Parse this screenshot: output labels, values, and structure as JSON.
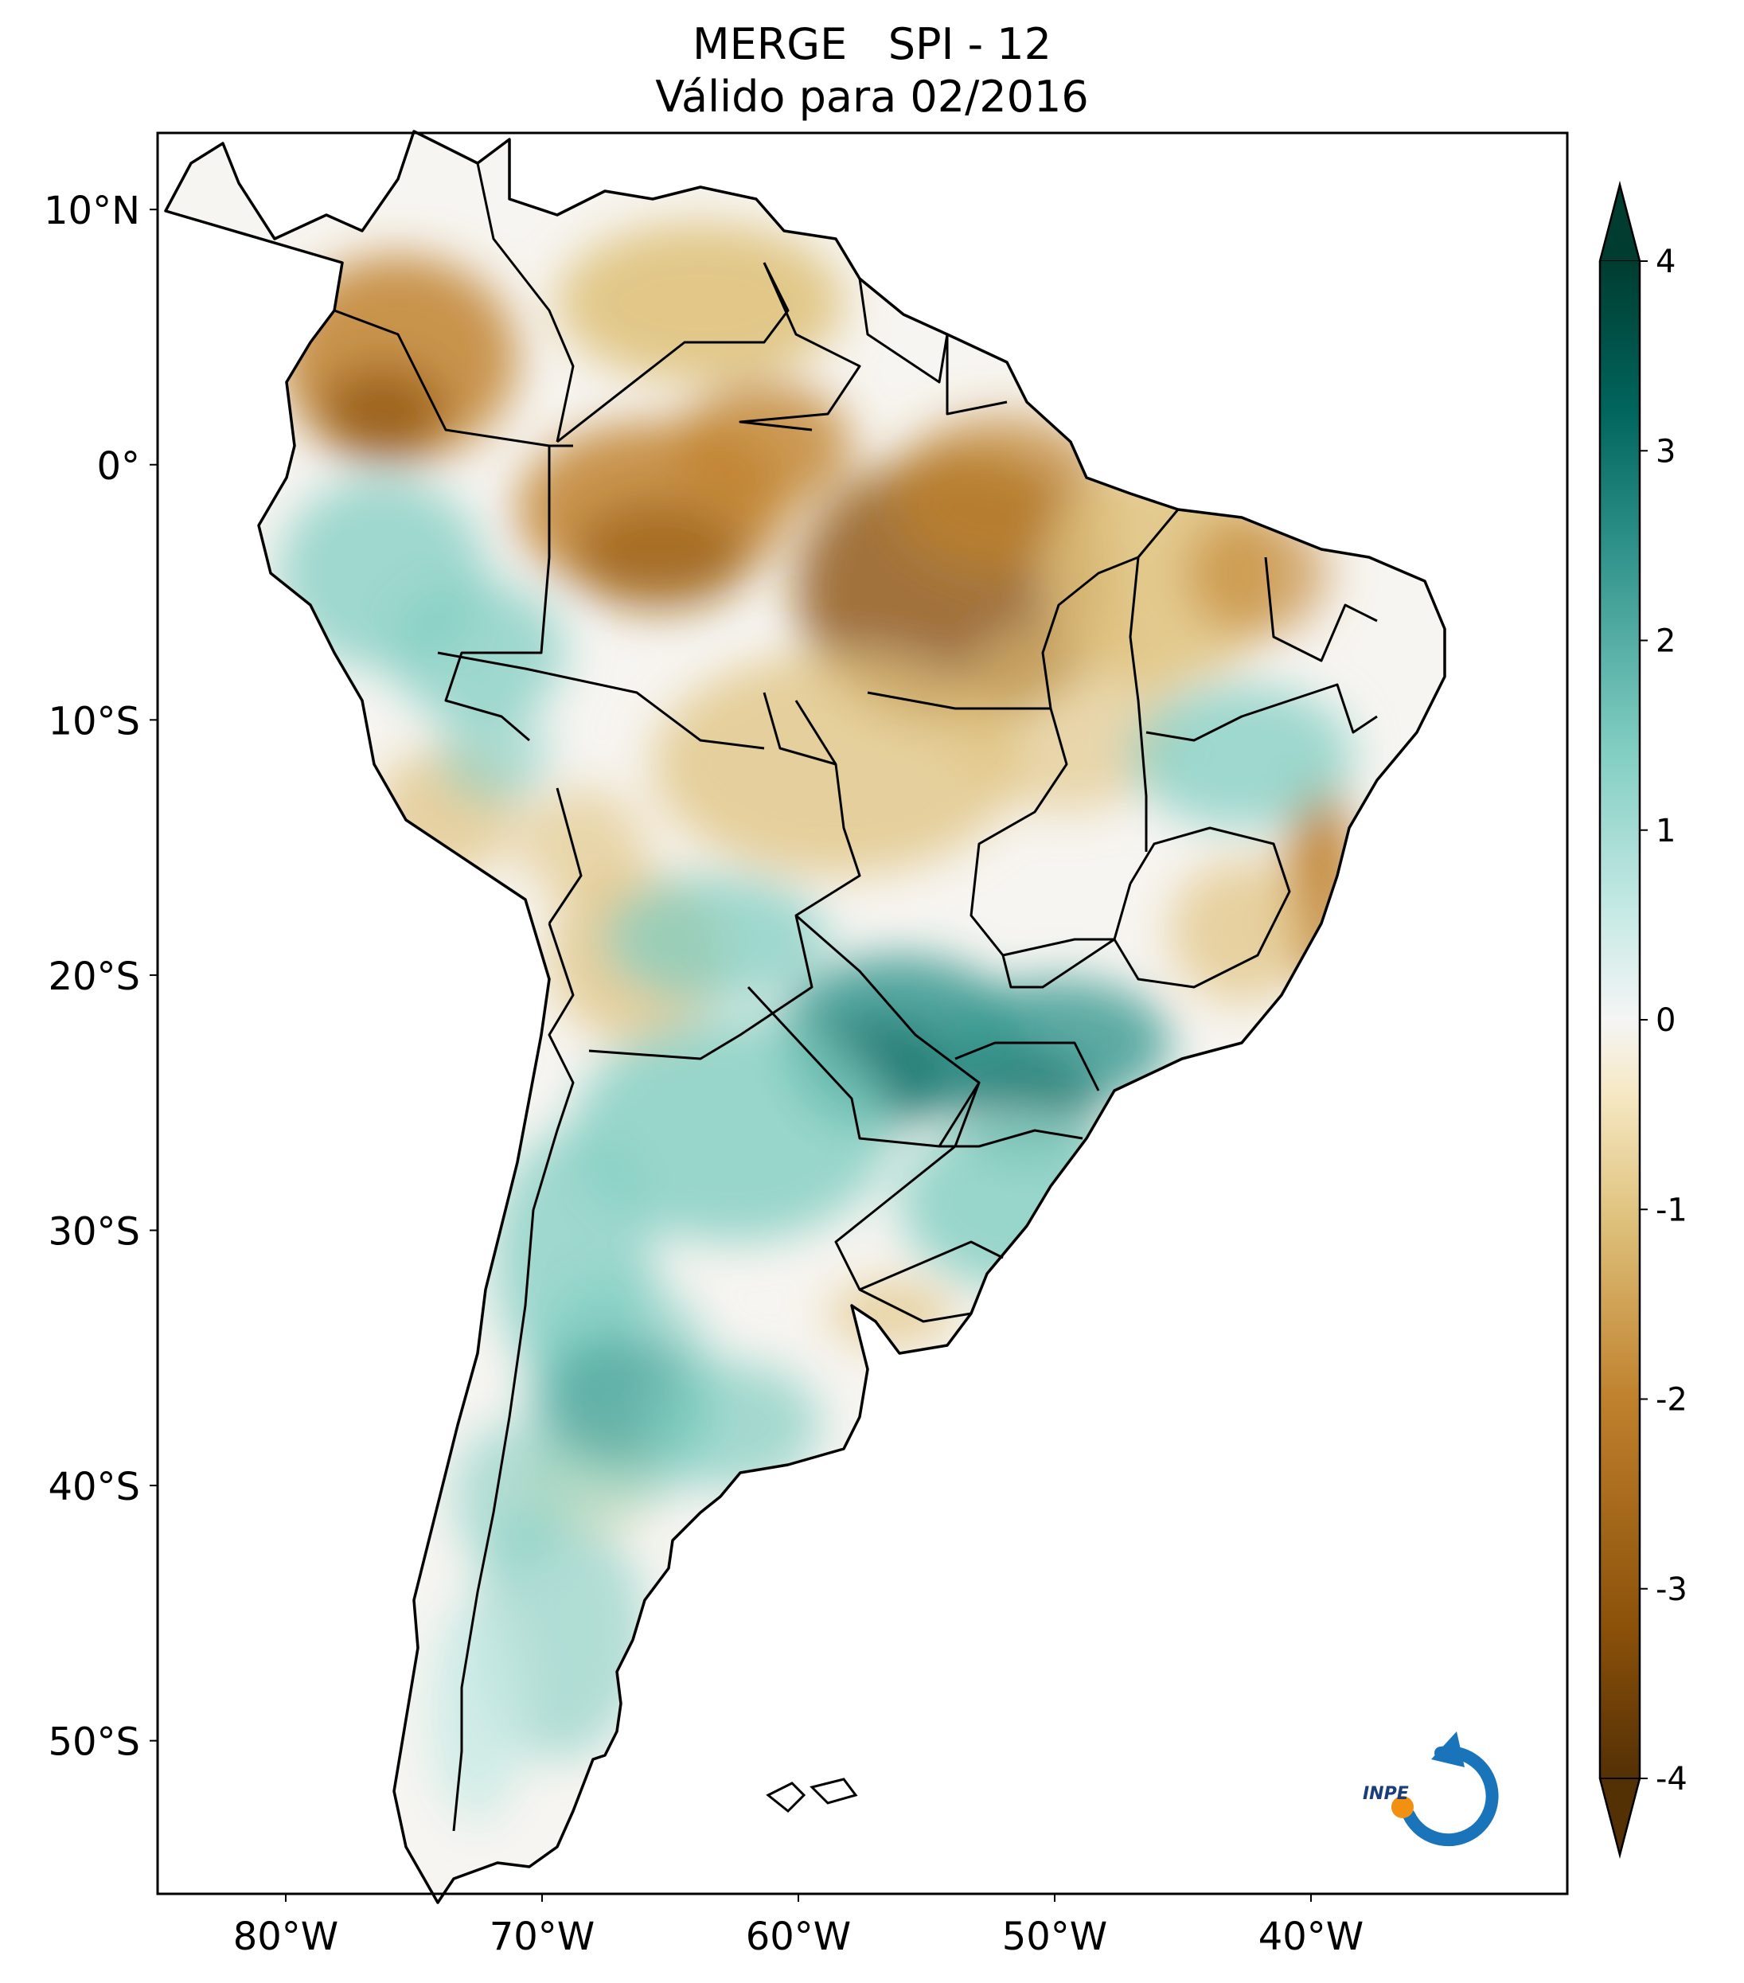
{
  "title": {
    "line1": "MERGE   SPI - 12",
    "line2": "Válido para 02/2016"
  },
  "map": {
    "region": "South America",
    "variable": "SPI - 12",
    "lat_ticks": [
      {
        "lat": 10,
        "label": "10°N"
      },
      {
        "lat": 0,
        "label": "0°"
      },
      {
        "lat": -10,
        "label": "10°S"
      },
      {
        "lat": -20,
        "label": "20°S"
      },
      {
        "lat": -30,
        "label": "30°S"
      },
      {
        "lat": -40,
        "label": "40°S"
      },
      {
        "lat": -50,
        "label": "50°S"
      }
    ],
    "lon_ticks": [
      {
        "lon": -80,
        "label": "80°W"
      },
      {
        "lon": -70,
        "label": "70°W"
      },
      {
        "lon": -60,
        "label": "60°W"
      },
      {
        "lon": -50,
        "label": "50°W"
      },
      {
        "lon": -40,
        "label": "40°W"
      }
    ],
    "lon_range": [
      -85,
      -30
    ],
    "lat_range": [
      -56,
      13
    ]
  },
  "colorbar": {
    "min": -4,
    "max": 4,
    "extend": "both",
    "ticks": [
      4,
      3,
      2,
      1,
      0,
      -1,
      -2,
      -3,
      -4
    ],
    "tick_labels": [
      "4",
      "3",
      "2",
      "1",
      "0",
      "-1",
      "-2",
      "-3",
      "-4"
    ],
    "colors": [
      "#543005",
      "#8c510a",
      "#bf812d",
      "#dfc27d",
      "#f6e8c3",
      "#f5f5f5",
      "#c7eae5",
      "#80cdc1",
      "#35978f",
      "#01665e",
      "#003c30"
    ]
  },
  "logo": {
    "text": "INPE",
    "blue": "#1a74b9",
    "orange": "#f29111"
  }
}
